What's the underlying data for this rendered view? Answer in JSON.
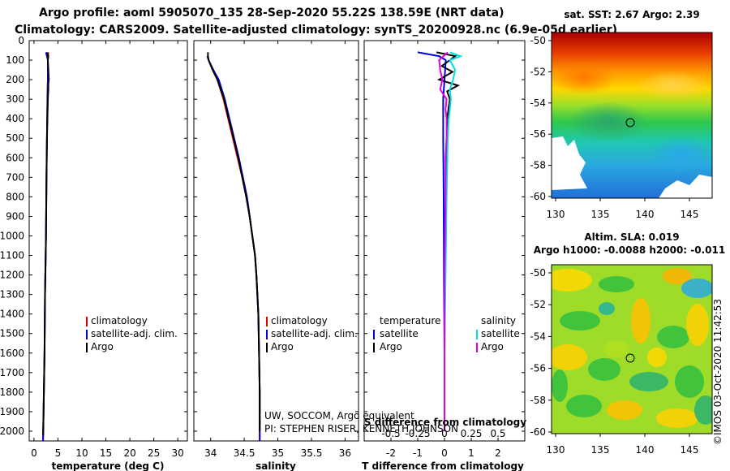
{
  "title": {
    "line1": "Argo profile: aoml 5905070_135 28-Sep-2020 55.22S 138.59E (NRT data)",
    "line2": "Climatology: CARS2009. Satellite-adjusted climatology: synTS_20200928.nc (6.9e-05d earlier)"
  },
  "depth_ticks": [
    "0",
    "100",
    "200",
    "300",
    "400",
    "500",
    "600",
    "700",
    "800",
    "900",
    "1000",
    "1100",
    "1200",
    "1300",
    "1400",
    "1500",
    "1600",
    "1700",
    "1800",
    "1900",
    "2000"
  ],
  "colors": {
    "climatology": "#e00000",
    "satellite": "#0000dd",
    "argo": "#000000",
    "sal_satellite": "#00e0e0",
    "sal_argo": "#e000e0"
  },
  "chart_data": [
    {
      "type": "line",
      "panel": "temperature",
      "xlabel": "temperature (deg C)",
      "ylabel": "depth",
      "xlim": [
        -1,
        32
      ],
      "ylim": [
        2050,
        0
      ],
      "xticks": [
        "0",
        "5",
        "10",
        "15",
        "20",
        "25",
        "30"
      ],
      "legend": {
        "position": "bottom-right",
        "items": [
          "climatology",
          "satellite-adj. clim.",
          "Argo"
        ]
      },
      "series": [
        {
          "name": "climatology",
          "depth": [
            60,
            100,
            200,
            300,
            500,
            700,
            1000,
            1300,
            1600,
            1900,
            2050
          ],
          "values": [
            3.0,
            2.9,
            2.9,
            2.8,
            2.7,
            2.6,
            2.5,
            2.3,
            2.2,
            2.0,
            1.9
          ]
        },
        {
          "name": "satellite-adj. clim.",
          "depth": [
            60,
            80,
            100,
            200,
            300,
            500,
            700,
            1000,
            1300,
            1600,
            1900,
            2050
          ],
          "values": [
            2.5,
            2.7,
            2.9,
            2.9,
            2.8,
            2.7,
            2.6,
            2.5,
            2.3,
            2.2,
            2.0,
            1.9
          ]
        },
        {
          "name": "Argo",
          "depth": [
            60,
            80,
            100,
            150,
            200,
            220,
            250,
            300,
            500,
            700,
            1000,
            1300,
            1600,
            1900,
            2020
          ],
          "values": [
            2.7,
            3.0,
            2.9,
            3.0,
            3.1,
            3.0,
            3.0,
            2.9,
            2.7,
            2.6,
            2.5,
            2.3,
            2.2,
            2.0,
            1.9
          ]
        }
      ]
    },
    {
      "type": "line",
      "panel": "salinity",
      "xlabel": "salinity",
      "xlim": [
        33.75,
        36.2
      ],
      "ylim": [
        2050,
        0
      ],
      "xticks": [
        "34",
        "34.5",
        "35",
        "35.5",
        "36"
      ],
      "legend": {
        "position": "bottom-right",
        "items": [
          "climatology",
          "satellite-adj. clim.",
          "Argo"
        ]
      },
      "series": [
        {
          "name": "climatology",
          "depth": [
            100,
            150,
            200,
            300,
            400,
            500,
            600,
            700,
            800,
            900,
            1000,
            1100,
            1200,
            1400,
            1600,
            1800,
            2050
          ],
          "values": [
            33.97,
            34.03,
            34.1,
            34.19,
            34.26,
            34.33,
            34.4,
            34.47,
            34.53,
            34.58,
            34.62,
            34.66,
            34.68,
            34.71,
            34.72,
            34.73,
            34.73
          ]
        },
        {
          "name": "satellite-adj. clim.",
          "depth": [
            80,
            100,
            150,
            200,
            300,
            400,
            500,
            600,
            700,
            800,
            900,
            1000,
            1100,
            1200,
            1400,
            1600,
            1800,
            2050
          ],
          "values": [
            33.95,
            33.97,
            34.04,
            34.12,
            34.21,
            34.28,
            34.35,
            34.42,
            34.48,
            34.54,
            34.58,
            34.62,
            34.66,
            34.68,
            34.71,
            34.72,
            34.73,
            34.73
          ]
        },
        {
          "name": "Argo",
          "depth": [
            60,
            80,
            100,
            150,
            200,
            300,
            400,
            500,
            600,
            700,
            800,
            900,
            1000,
            1100,
            1200,
            1400,
            1600,
            1800,
            2000
          ],
          "values": [
            33.96,
            33.96,
            33.97,
            34.03,
            34.1,
            34.2,
            34.27,
            34.34,
            34.41,
            34.47,
            34.53,
            34.58,
            34.62,
            34.66,
            34.68,
            34.71,
            34.72,
            34.73,
            34.73
          ]
        }
      ]
    },
    {
      "type": "line",
      "panel": "difference",
      "xlabel": "T difference from climatology",
      "xlabel_top": "S difference from climatology",
      "xlim": [
        -3,
        3
      ],
      "xticks_bottom": [
        "-2",
        "-1",
        "0",
        "1",
        "2"
      ],
      "xticks_top": [
        "-0.5",
        "-0.25",
        "0",
        "0.25",
        "0.5"
      ],
      "legend": {
        "position": "bottom",
        "temperature": [
          "satellite",
          "Argo"
        ],
        "salinity": [
          "satellite",
          "Argo"
        ],
        "headers": [
          "temperature",
          "salinity"
        ]
      },
      "series": [
        {
          "name": "T satellite",
          "depth": [
            60,
            80,
            100,
            200,
            300,
            500,
            800,
            1200,
            1600,
            2000
          ],
          "values": [
            -1.0,
            -0.2,
            0.05,
            0.0,
            -0.05,
            -0.05,
            -0.03,
            -0.02,
            0.0,
            0.0
          ]
        },
        {
          "name": "T Argo",
          "depth": [
            60,
            80,
            100,
            130,
            160,
            200,
            230,
            260,
            300,
            400,
            500,
            800,
            1200,
            1600,
            2000
          ],
          "values": [
            -0.3,
            0.4,
            0.2,
            -0.1,
            0.3,
            -0.2,
            0.5,
            0.1,
            0.2,
            0.1,
            0.1,
            0.05,
            0.02,
            0.0,
            0.0
          ]
        },
        {
          "name": "S satellite",
          "depth": [
            60,
            80,
            100,
            150,
            200,
            250,
            300,
            400,
            500,
            800,
            1200,
            1600,
            2000
          ],
          "values": [
            0.05,
            0.15,
            0.05,
            0.1,
            0.08,
            0.05,
            0.06,
            0.04,
            0.03,
            0.02,
            0.01,
            0.0,
            0.0
          ]
        },
        {
          "name": "S Argo",
          "depth": [
            60,
            100,
            150,
            200,
            250,
            300,
            350,
            400,
            500,
            600,
            800,
            1200,
            1600,
            2000
          ],
          "values": [
            0.03,
            -0.05,
            -0.04,
            -0.02,
            -0.04,
            0.02,
            0.01,
            0.02,
            0.02,
            0.01,
            0.01,
            0.0,
            0.0,
            0.0
          ]
        }
      ]
    }
  ],
  "maps": {
    "sst": {
      "title": "sat. SST: 2.67 Argo: 2.39",
      "xticks": [
        "130",
        "135",
        "140",
        "145"
      ],
      "yticks": [
        "-50",
        "-52",
        "-54",
        "-56",
        "-58",
        "-60"
      ]
    },
    "sla": {
      "title": "Altim. SLA: 0.019",
      "subtitle": "Argo h1000: -0.0088 h2000: -0.011",
      "xticks": [
        "130",
        "135",
        "140",
        "145"
      ],
      "yticks": [
        "-50",
        "-52",
        "-54",
        "-56",
        "-58",
        "-60"
      ]
    },
    "profile_location": {
      "lon": 138.59,
      "lat": -55.22
    }
  },
  "notes": {
    "line1": "UW, SOCCOM, Argo equivalent",
    "line2": "PI: STEPHEN RISER, KENNETH JOHNSON"
  },
  "watermark": "©IMOS 03-Oct-2020 11:42:53"
}
